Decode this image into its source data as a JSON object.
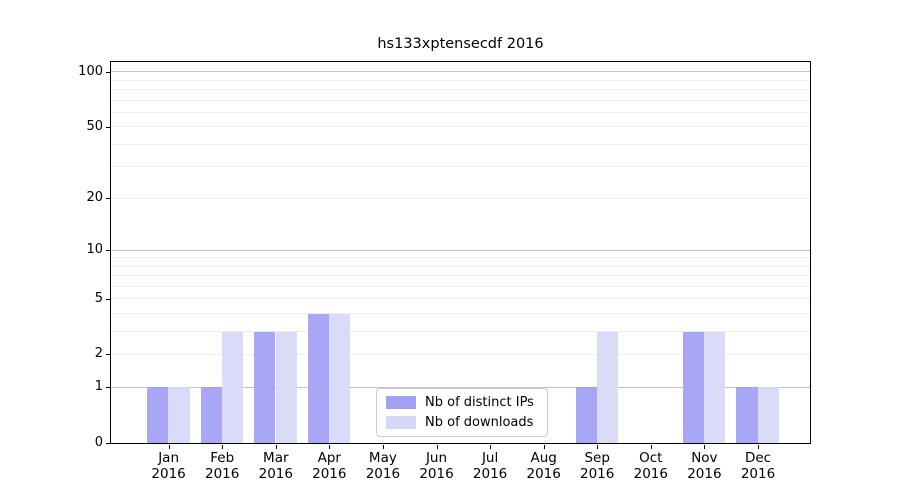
{
  "chart_data": {
    "type": "bar",
    "title": "hs133xptensecdf 2016",
    "categories": [
      "Jan",
      "Feb",
      "Mar",
      "Apr",
      "May",
      "Jun",
      "Jul",
      "Aug",
      "Sep",
      "Oct",
      "Nov",
      "Dec"
    ],
    "category_year": "2016",
    "series": [
      {
        "key": "distinct-ips",
        "name": "Nb of distinct IPs",
        "color": "#a0a0f4",
        "values": [
          1,
          1,
          3,
          4,
          0,
          0,
          0,
          0,
          1,
          0,
          3,
          1
        ]
      },
      {
        "key": "downloads",
        "name": "Nb of downloads",
        "color": "#d7d7f8",
        "values": [
          1,
          3,
          3,
          4,
          0,
          0,
          0,
          0,
          3,
          0,
          3,
          1
        ]
      }
    ],
    "yscale": "log1p",
    "ylim": [
      0,
      115
    ],
    "yticks": [
      0,
      1,
      2,
      5,
      10,
      20,
      50,
      100
    ],
    "grid_major": [
      1,
      10,
      100
    ],
    "grid_minor": [
      2,
      3,
      4,
      5,
      6,
      7,
      8,
      9,
      20,
      30,
      40,
      50,
      60,
      70,
      80,
      90
    ],
    "legend_position": "lower center",
    "colors": {
      "frame": "#000000",
      "grid_major": "#c4c4c4",
      "grid_minor": "#ededed",
      "background": "#ffffff",
      "text": "#000000"
    }
  }
}
